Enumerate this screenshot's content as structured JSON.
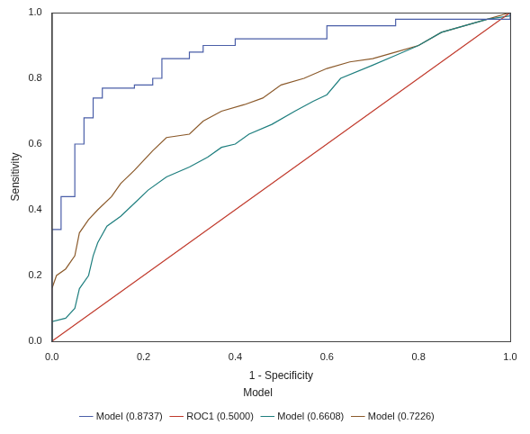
{
  "chart_data": {
    "type": "line",
    "x_label": "1 - Specificity",
    "y_label": "Sensitivity",
    "legend_title": "Model",
    "legend": "bottom",
    "grid": false,
    "marker": "none",
    "xlim": [
      0,
      1
    ],
    "ylim": [
      0,
      1
    ],
    "xticks": [
      {
        "value": 0,
        "label": "0.0"
      },
      0.2,
      0.4,
      0.6,
      0.8,
      {
        "value": 1,
        "label": "1.0"
      }
    ],
    "yticks": [
      {
        "value": 0,
        "label": "0.0"
      },
      0.2,
      0.4,
      0.6,
      0.8,
      {
        "value": 1,
        "label": "1.0"
      }
    ],
    "series": [
      {
        "name": "Model (0.8737)",
        "color": "#4a5ea8",
        "x": [
          0,
          0,
          0.02,
          0.02,
          0.05,
          0.05,
          0.07,
          0.07,
          0.09,
          0.09,
          0.11,
          0.11,
          0.18,
          0.18,
          0.22,
          0.22,
          0.24,
          0.24,
          0.3,
          0.3,
          0.33,
          0.33,
          0.4,
          0.4,
          0.6,
          0.6,
          0.75,
          0.75,
          1,
          1
        ],
        "values": [
          0,
          0.34,
          0.34,
          0.44,
          0.44,
          0.6,
          0.6,
          0.68,
          0.68,
          0.74,
          0.74,
          0.77,
          0.77,
          0.78,
          0.78,
          0.8,
          0.8,
          0.86,
          0.86,
          0.88,
          0.88,
          0.9,
          0.9,
          0.92,
          0.92,
          0.96,
          0.96,
          0.98,
          0.98,
          1
        ]
      },
      {
        "name": "ROC1 (0.5000)",
        "color": "#c0392b",
        "x": [
          0,
          1
        ],
        "values": [
          0,
          1
        ]
      },
      {
        "name": "Model (0.6608)",
        "color": "#1f7f7f",
        "x": [
          0,
          0,
          0.03,
          0.05,
          0.06,
          0.08,
          0.09,
          0.1,
          0.12,
          0.15,
          0.18,
          0.21,
          0.25,
          0.3,
          0.34,
          0.37,
          0.4,
          0.43,
          0.48,
          0.53,
          0.57,
          0.6,
          0.63,
          0.7,
          0.75,
          0.8,
          0.85,
          0.9,
          0.95,
          1,
          1
        ],
        "values": [
          0,
          0.06,
          0.07,
          0.1,
          0.16,
          0.2,
          0.26,
          0.3,
          0.35,
          0.38,
          0.42,
          0.46,
          0.5,
          0.53,
          0.56,
          0.59,
          0.6,
          0.63,
          0.66,
          0.7,
          0.73,
          0.75,
          0.8,
          0.84,
          0.87,
          0.9,
          0.94,
          0.96,
          0.98,
          0.99,
          1
        ]
      },
      {
        "name": "Model (0.7226)",
        "color": "#8b5a2b",
        "x": [
          0,
          0,
          0.01,
          0.03,
          0.05,
          0.06,
          0.08,
          0.1,
          0.13,
          0.15,
          0.18,
          0.22,
          0.25,
          0.3,
          0.33,
          0.37,
          0.42,
          0.46,
          0.5,
          0.55,
          0.6,
          0.65,
          0.7,
          0.75,
          0.8,
          0.85,
          0.9,
          0.95,
          1
        ],
        "values": [
          0,
          0.16,
          0.2,
          0.22,
          0.26,
          0.33,
          0.37,
          0.4,
          0.44,
          0.48,
          0.52,
          0.58,
          0.62,
          0.63,
          0.67,
          0.7,
          0.72,
          0.74,
          0.78,
          0.8,
          0.83,
          0.85,
          0.86,
          0.88,
          0.9,
          0.94,
          0.96,
          0.98,
          1
        ]
      }
    ]
  }
}
